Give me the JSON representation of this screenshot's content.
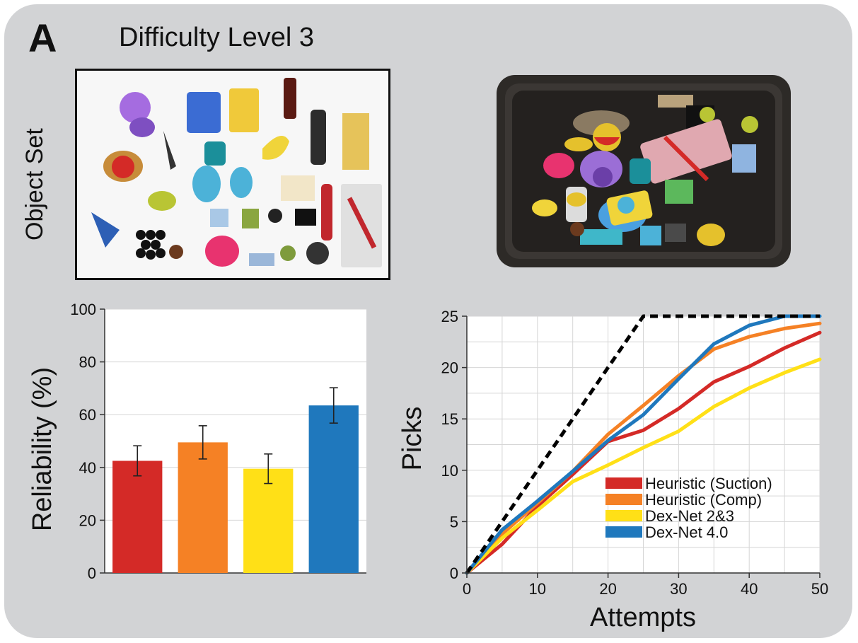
{
  "panel": {
    "letter": "A",
    "title": "Difficulty Level 3"
  },
  "photos": {
    "object_set_label": "Object Set"
  },
  "colors": {
    "panel_bg": "#d2d3d5",
    "heuristic_suction": "#d42a27",
    "heuristic_comp": "#f58125",
    "dexnet_23": "#ffe017",
    "dexnet_40": "#1f78bd",
    "ideal": "#000000"
  },
  "chart_data": [
    {
      "type": "bar",
      "categories": [
        "",
        "",
        "",
        ""
      ],
      "series": [
        {
          "values": [
            42.5,
            49.5,
            39.5,
            63.5
          ],
          "errors": [
            5.7,
            6.3,
            5.6,
            6.7
          ]
        }
      ],
      "xlabel": "",
      "ylabel": "Reliability (%)",
      "ylim": [
        0,
        100
      ],
      "yticks": [
        0,
        20,
        40,
        60,
        80,
        100
      ],
      "grid": true,
      "colors": [
        "#d42a27",
        "#f58125",
        "#ffe017",
        "#1f78bd"
      ]
    },
    {
      "type": "line",
      "xlabel": "Attempts",
      "ylabel": "Picks",
      "xlim": [
        0,
        50
      ],
      "ylim": [
        0,
        25
      ],
      "xticks": [
        0,
        10,
        20,
        30,
        40,
        50
      ],
      "yticks": [
        0,
        5,
        10,
        15,
        20,
        25
      ],
      "grid": true,
      "legend_position": "bottom-right",
      "x": [
        0,
        5,
        10,
        15,
        20,
        25,
        30,
        35,
        40,
        45,
        50
      ],
      "series": [
        {
          "name": "Heuristic (Suction)",
          "color": "#d42a27",
          "values": [
            0,
            2.8,
            6.5,
            9.6,
            12.8,
            13.9,
            16.0,
            18.6,
            20.1,
            21.9,
            23.4
          ]
        },
        {
          "name": "Heuristic (Comp)",
          "color": "#f58125",
          "values": [
            0,
            3.8,
            6.8,
            9.9,
            13.5,
            16.3,
            19.2,
            21.8,
            23.0,
            23.8,
            24.3
          ]
        },
        {
          "name": "Dex-Net 2&3",
          "color": "#ffe017",
          "values": [
            0,
            3.4,
            6.1,
            8.9,
            10.5,
            12.2,
            13.8,
            16.2,
            18.0,
            19.5,
            20.8
          ]
        },
        {
          "name": "Dex-Net 4.0",
          "color": "#1f78bd",
          "values": [
            0,
            4.2,
            7.0,
            9.9,
            12.9,
            15.4,
            18.9,
            22.3,
            24.1,
            25,
            25
          ]
        },
        {
          "name": "",
          "color": "#000000",
          "dashed": true,
          "values": [
            0,
            5,
            10,
            15,
            20,
            25,
            25,
            25,
            25,
            25,
            25
          ]
        }
      ]
    }
  ]
}
